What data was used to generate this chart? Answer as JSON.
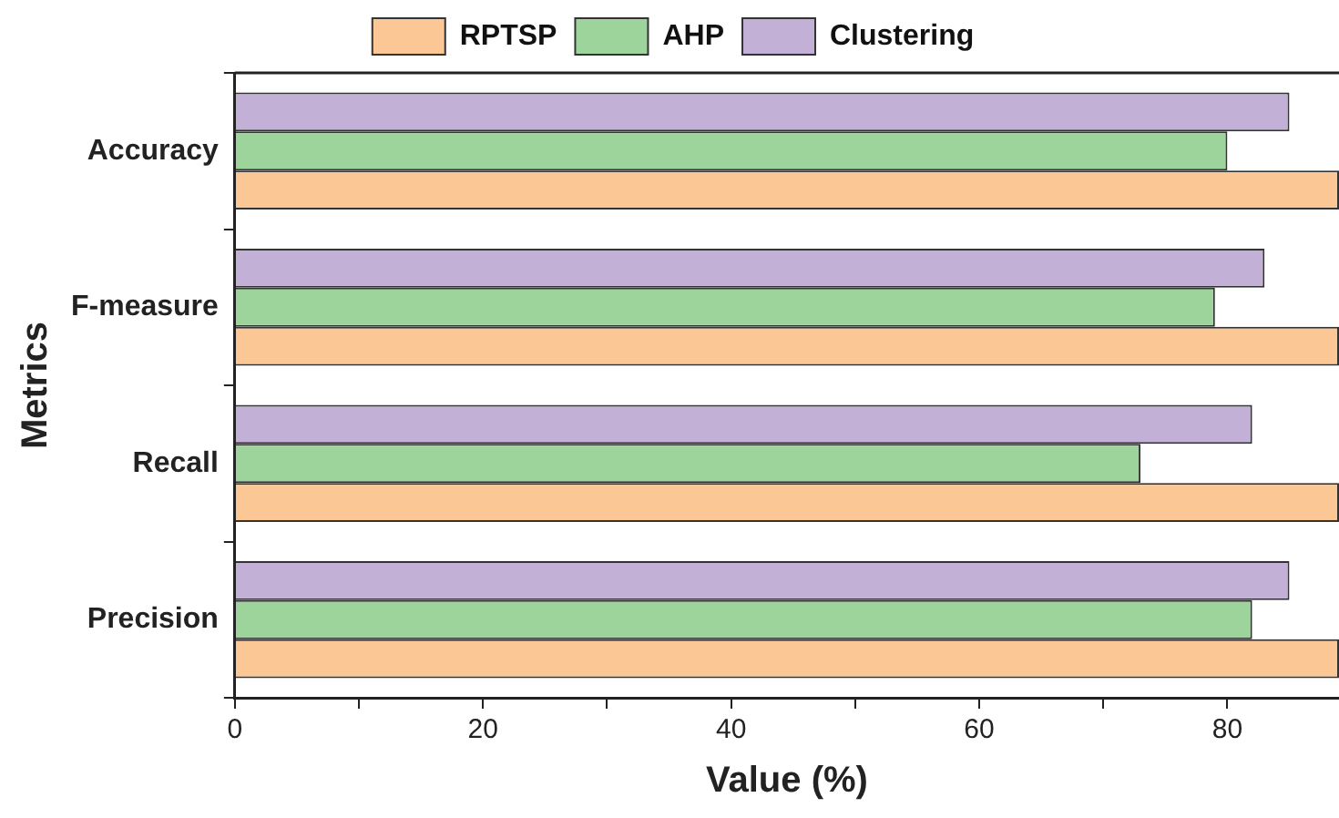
{
  "chart_data": {
    "type": "bar",
    "orientation": "horizontal",
    "xlabel": "Value (%)",
    "ylabel": "Metrics",
    "categories": [
      "Accuracy",
      "F-measure",
      "Recall",
      "Precision"
    ],
    "series": [
      {
        "name": "RPTSP",
        "color": "#fbc895",
        "values": [
          89,
          89,
          89,
          89
        ]
      },
      {
        "name": "AHP",
        "color": "#9dd49b",
        "values": [
          80,
          79,
          73,
          82
        ]
      },
      {
        "name": "Clustering",
        "color": "#c3b0d6",
        "values": [
          85,
          83,
          82,
          85
        ]
      }
    ],
    "xlim": [
      0,
      89
    ],
    "xticks": [
      0,
      {
        "value": 10,
        "label": null
      },
      20,
      {
        "value": 30,
        "label": null
      },
      40,
      {
        "value": 50,
        "label": null
      },
      60,
      {
        "value": 70,
        "label": null
      },
      80
    ],
    "grid": false,
    "legend": "top"
  }
}
